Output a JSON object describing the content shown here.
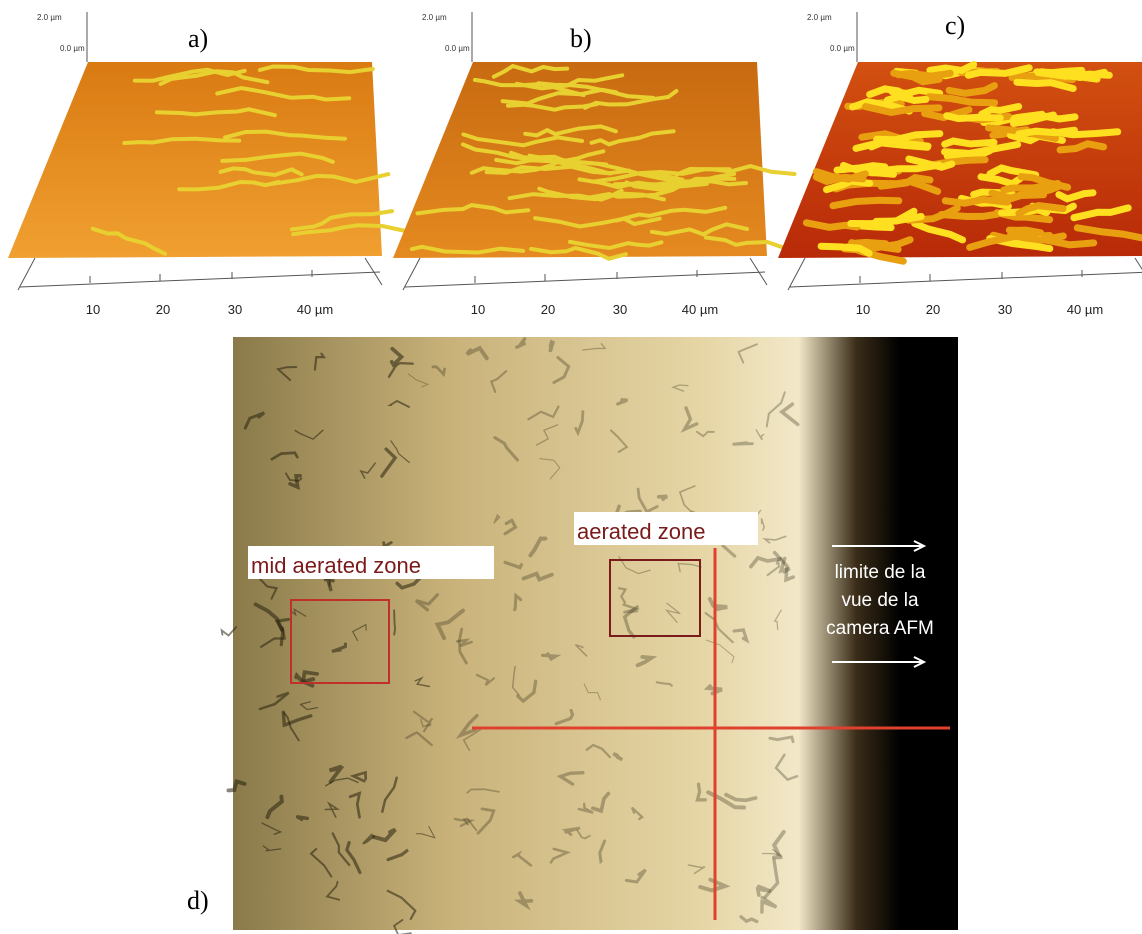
{
  "panels": [
    {
      "label": "a)",
      "z_axis": [
        "2.0 µm",
        "0.0 µm"
      ],
      "x_axis": [
        "10",
        "20",
        "30",
        "40 µm"
      ]
    },
    {
      "label": "b)",
      "z_axis": [
        "2.0 µm",
        "0.0 µm"
      ],
      "x_axis": [
        "10",
        "20",
        "30",
        "40 µm"
      ]
    },
    {
      "label": "c)",
      "z_axis": [
        "2.0 µm",
        "0.0 µm"
      ],
      "x_axis": [
        "10",
        "20",
        "30",
        "40 µm"
      ]
    }
  ],
  "micrograph": {
    "label": "d)",
    "zones": [
      "mid aerated zone",
      "aerated zone"
    ],
    "note": [
      "limite de la",
      "vue de la",
      "camera AFM"
    ]
  }
}
